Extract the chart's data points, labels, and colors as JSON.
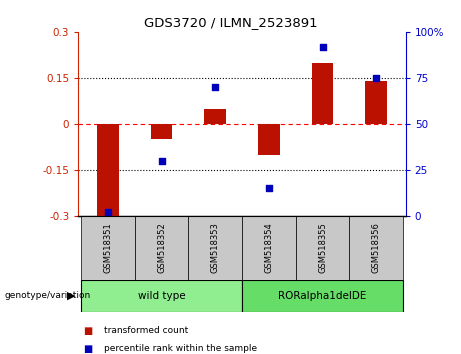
{
  "title": "GDS3720 / ILMN_2523891",
  "samples": [
    "GSM518351",
    "GSM518352",
    "GSM518353",
    "GSM518354",
    "GSM518355",
    "GSM518356"
  ],
  "red_bars": [
    -0.3,
    -0.05,
    0.05,
    -0.1,
    0.2,
    0.14
  ],
  "blue_dots": [
    2.0,
    30.0,
    70.0,
    15.0,
    92.0,
    75.0
  ],
  "ylim_left": [
    -0.3,
    0.3
  ],
  "ylim_right": [
    0,
    100
  ],
  "yticks_left": [
    -0.3,
    -0.15,
    0.0,
    0.15,
    0.3
  ],
  "yticks_right": [
    0,
    25,
    50,
    75,
    100
  ],
  "ytick_labels_left": [
    "-0.3",
    "-0.15",
    "0",
    "0.15",
    "0.3"
  ],
  "ytick_labels_right": [
    "0",
    "25",
    "50",
    "75",
    "100%"
  ],
  "groups": [
    {
      "label": "wild type",
      "samples": [
        0,
        1,
        2
      ],
      "color": "#90EE90"
    },
    {
      "label": "RORalpha1delDE",
      "samples": [
        3,
        4,
        5
      ],
      "color": "#66DD66"
    }
  ],
  "group_row_label": "genotype/variation",
  "legend_red": "transformed count",
  "legend_blue": "percentile rank within the sample",
  "bar_color": "#BB1100",
  "dot_color": "#0000BB",
  "bg_color": "#FFFFFF",
  "plot_bg": "#FFFFFF",
  "axis_color_left": "#CC2200",
  "axis_color_right": "#0000CC",
  "tick_box_color": "#C8C8C8",
  "bar_width": 0.4
}
